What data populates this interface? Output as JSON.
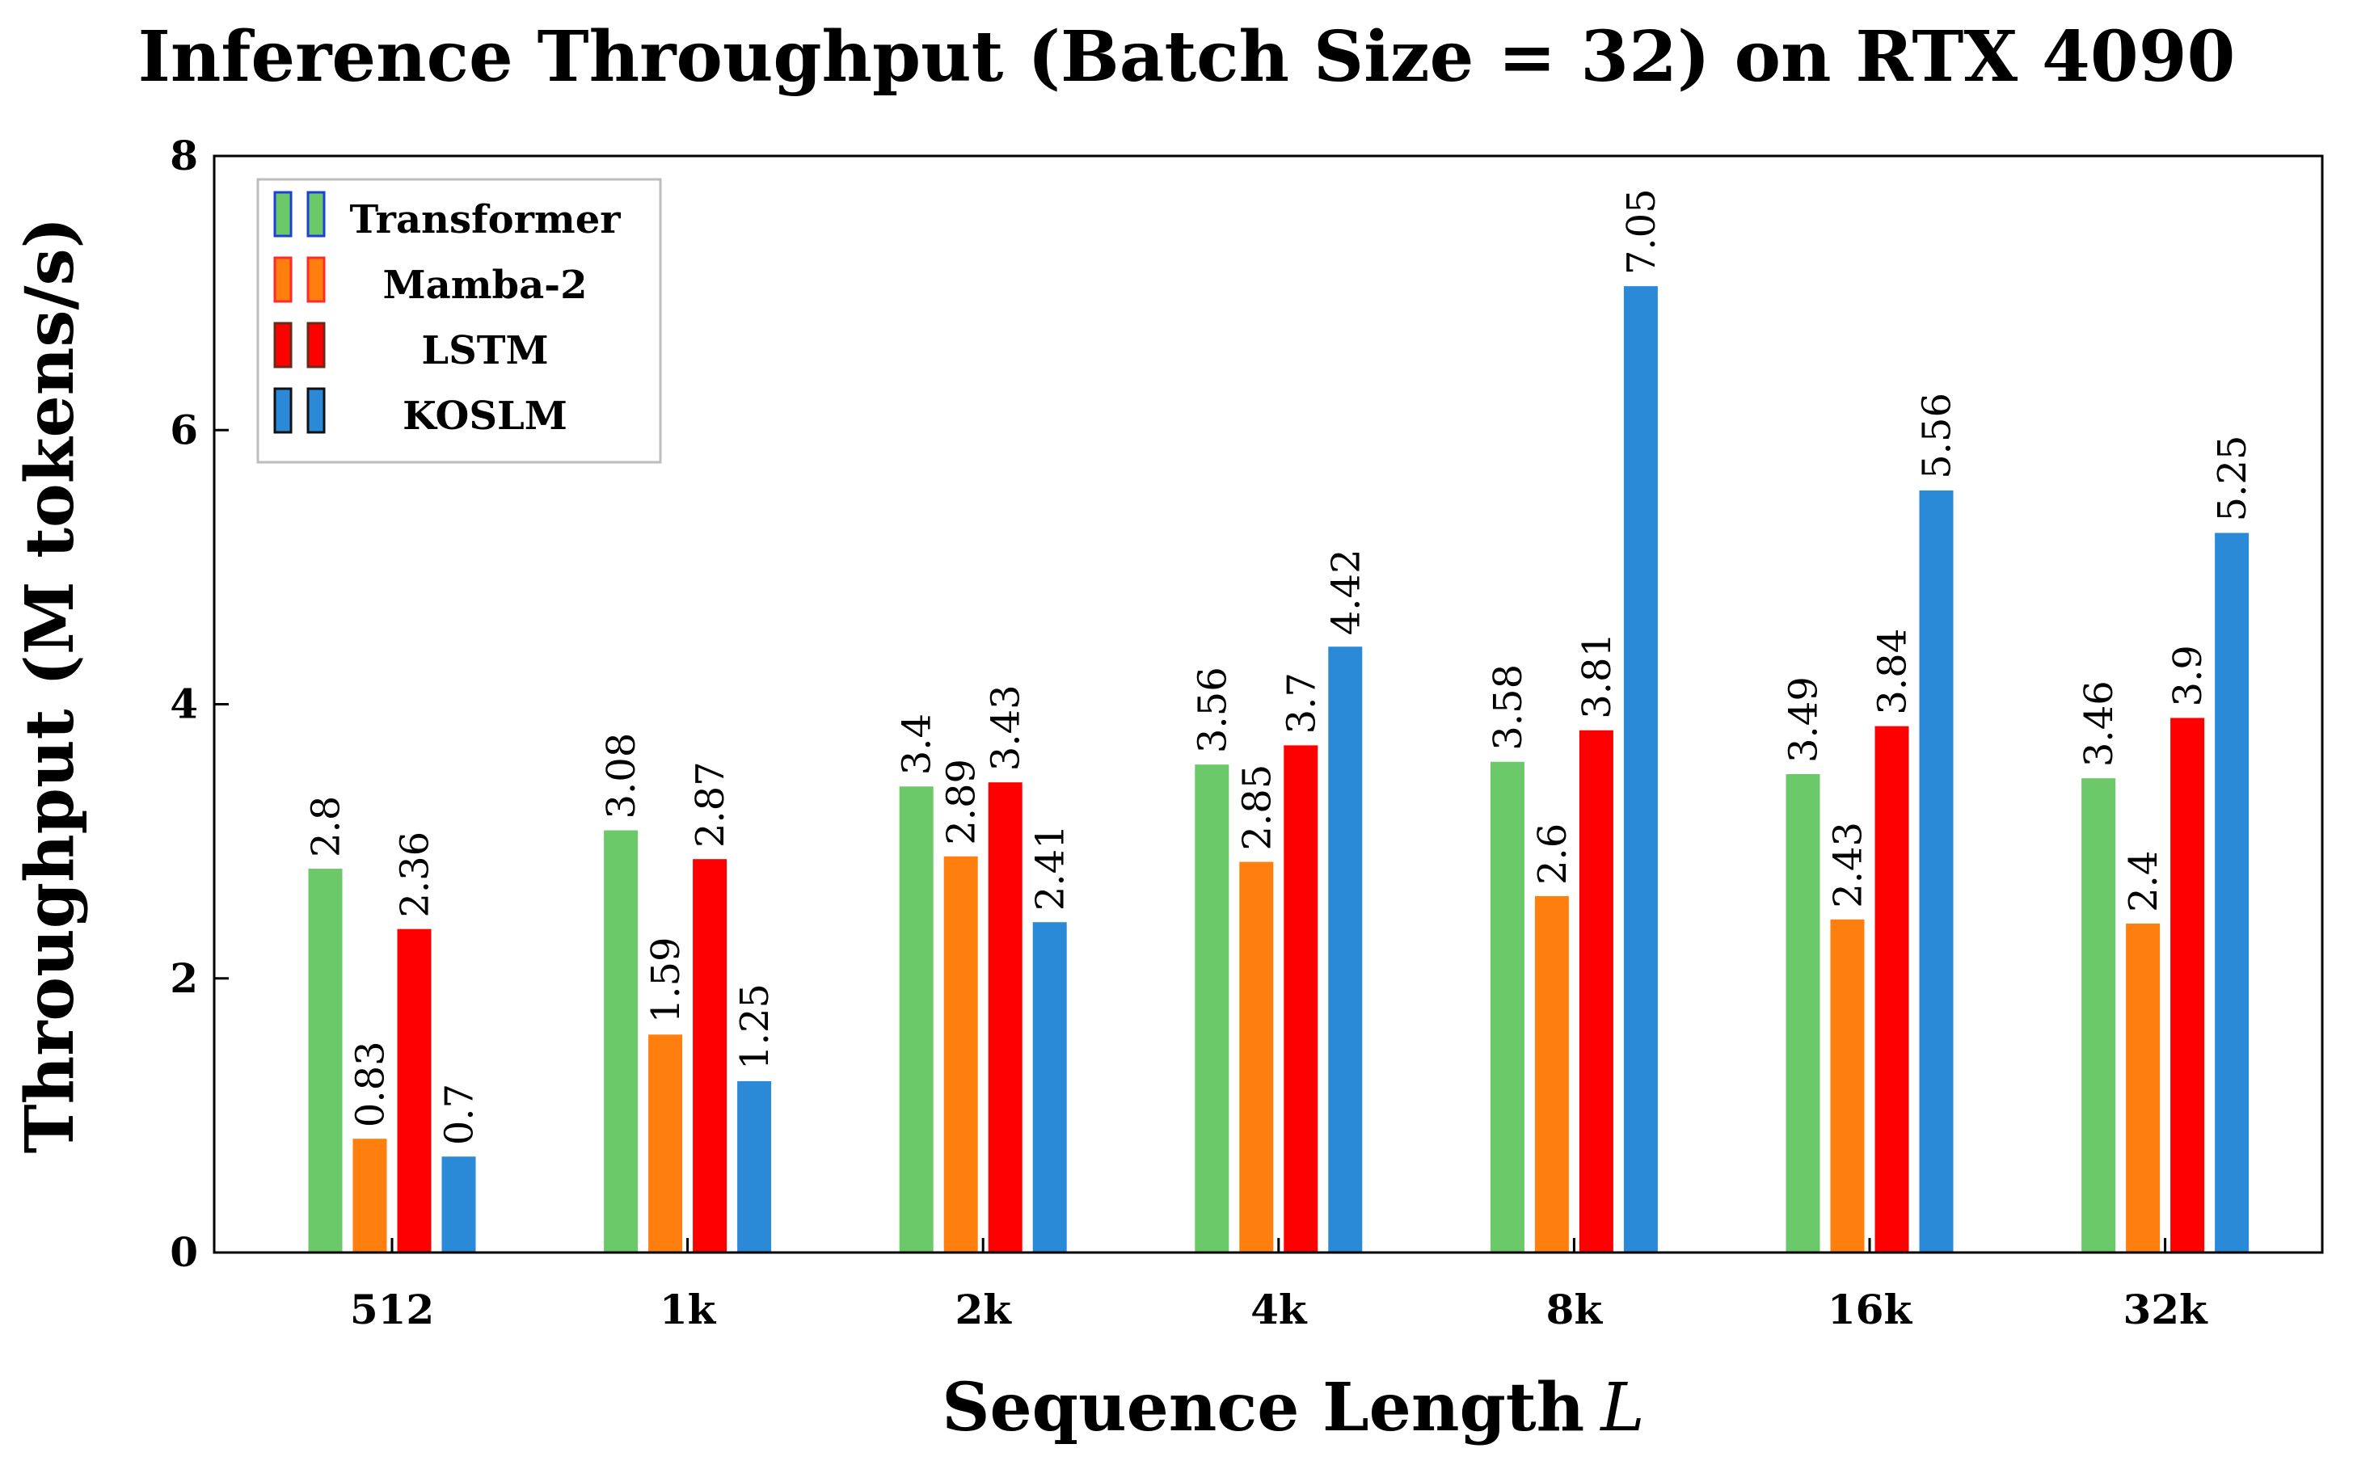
{
  "chart_data": {
    "type": "bar",
    "title": "Inference Throughput (Batch Size = 32) on RTX 4090",
    "xlabel": "Sequence Length",
    "xlabel_var": "L",
    "ylabel": "Throughput (M tokens/s)",
    "ylim": [
      0,
      8
    ],
    "yticks": [
      "0",
      "2",
      "4",
      "6",
      "8"
    ],
    "ytick_values": [
      0,
      2,
      4,
      6,
      8
    ],
    "categories": [
      "512",
      "1k",
      "2k",
      "4k",
      "8k",
      "16k",
      "32k"
    ],
    "legend_position": "top-left",
    "grid": false,
    "series": [
      {
        "name": "Transformer",
        "color": "#6cc96a",
        "legend_border": "#1f3fd6",
        "values": [
          2.8,
          3.08,
          3.4,
          3.56,
          3.58,
          3.49,
          3.46
        ],
        "labels": [
          "2.8",
          "3.08",
          "3.4",
          "3.56",
          "3.58",
          "3.49",
          "3.46"
        ]
      },
      {
        "name": "Mamba-2",
        "color": "#ff7f0e",
        "legend_border": "#ff2a2a",
        "values": [
          0.83,
          1.59,
          2.89,
          2.85,
          2.6,
          2.43,
          2.4
        ],
        "labels": [
          "0.83",
          "1.59",
          "2.89",
          "2.85",
          "2.6",
          "2.43",
          "2.4"
        ]
      },
      {
        "name": "LSTM",
        "color": "#ff0000",
        "legend_border": "#6a2a1a",
        "values": [
          2.36,
          2.87,
          3.43,
          3.7,
          3.81,
          3.84,
          3.9
        ],
        "labels": [
          "2.36",
          "2.87",
          "3.43",
          "3.7",
          "3.81",
          "3.84",
          "3.9"
        ]
      },
      {
        "name": "KOSLM",
        "color": "#2a8ad8",
        "legend_border": "#111111",
        "values": [
          0.7,
          1.25,
          2.41,
          4.42,
          7.05,
          5.56,
          5.25
        ],
        "labels": [
          "0.7",
          "1.25",
          "2.41",
          "4.42",
          "7.05",
          "5.56",
          "5.25"
        ]
      }
    ]
  }
}
